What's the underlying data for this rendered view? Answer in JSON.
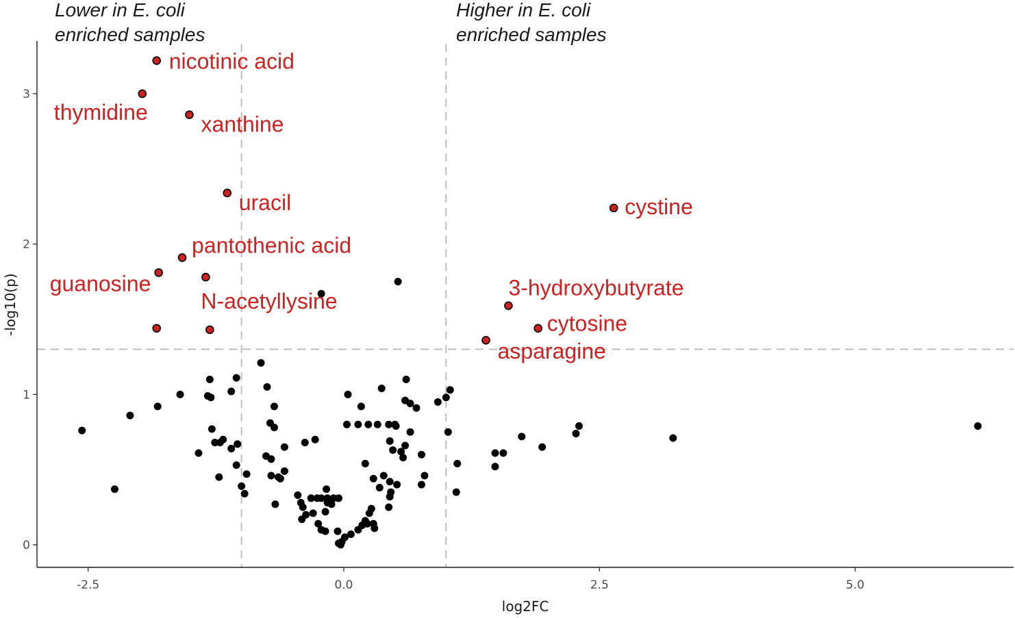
{
  "chart_data": {
    "type": "scatter",
    "title": "",
    "xlabel": "log2FC",
    "ylabel": "-log10(p)",
    "xlim": [
      -3.0,
      6.55
    ],
    "ylim": [
      -0.15,
      3.35
    ],
    "x_ticks": [
      -2.5,
      0.0,
      2.5,
      5.0
    ],
    "x_tick_labels": [
      "-2.5",
      "0.0",
      "2.5",
      "5.0"
    ],
    "y_ticks": [
      0,
      1,
      2,
      3
    ],
    "y_tick_labels": [
      "0",
      "1",
      "2",
      "3"
    ],
    "grid": false,
    "thresholds": {
      "fold_change": [
        -1.0,
        1.0
      ],
      "p": 1.3
    },
    "colors": {
      "significant": "#cc2222",
      "not_significant": "#000000",
      "threshold_line": "#bdbdbd"
    },
    "annotations": [
      {
        "lines": [
          "Lower in E. coli",
          "enriched samples"
        ],
        "position": "top-left"
      },
      {
        "lines": [
          "Higher in E. coli",
          "enriched samples"
        ],
        "position": "top-center"
      }
    ],
    "labeled_points": [
      {
        "label": "nicotinic acid",
        "x": -1.83,
        "y": 3.22
      },
      {
        "label": "thymidine",
        "x": -1.97,
        "y": 3.0
      },
      {
        "label": "xanthine",
        "x": -1.51,
        "y": 2.86
      },
      {
        "label": "uracil",
        "x": -1.14,
        "y": 2.34
      },
      {
        "label": "pantothenic acid",
        "x": -1.58,
        "y": 1.91
      },
      {
        "label": "guanosine",
        "x": -1.81,
        "y": 1.81
      },
      {
        "label": "N-acetyllysine",
        "x": -1.35,
        "y": 1.78
      },
      {
        "label": "cystine",
        "x": 2.64,
        "y": 2.24
      },
      {
        "label": "3-hydroxybutyrate",
        "x": 1.61,
        "y": 1.59
      },
      {
        "label": "cytosine",
        "x": 1.9,
        "y": 1.44
      },
      {
        "label": "asparagine",
        "x": 1.39,
        "y": 1.36
      }
    ],
    "significant_unlabeled": [
      {
        "x": -1.83,
        "y": 1.44
      },
      {
        "x": -1.31,
        "y": 1.43
      }
    ],
    "background_points": [
      [
        -0.22,
        1.67
      ],
      [
        0.53,
        1.75
      ],
      [
        -0.81,
        1.21
      ],
      [
        -1.05,
        1.11
      ],
      [
        -1.31,
        1.1
      ],
      [
        -0.75,
        1.05
      ],
      [
        -1.1,
        1.02
      ],
      [
        -1.6,
        1.0
      ],
      [
        -1.33,
        0.99
      ],
      [
        -1.3,
        0.98
      ],
      [
        -0.68,
        0.92
      ],
      [
        -1.82,
        0.92
      ],
      [
        -2.09,
        0.86
      ],
      [
        -0.72,
        0.81
      ],
      [
        -0.68,
        0.78
      ],
      [
        -1.29,
        0.77
      ],
      [
        -2.56,
        0.76
      ],
      [
        -1.18,
        0.7
      ],
      [
        -1.21,
        0.68
      ],
      [
        -1.26,
        0.68
      ],
      [
        -1.04,
        0.67
      ],
      [
        -1.1,
        0.64
      ],
      [
        -0.58,
        0.65
      ],
      [
        -0.38,
        0.68
      ],
      [
        -0.28,
        0.7
      ],
      [
        -1.42,
        0.61
      ],
      [
        -0.76,
        0.59
      ],
      [
        -0.71,
        0.57
      ],
      [
        -1.05,
        0.53
      ],
      [
        -0.95,
        0.47
      ],
      [
        -0.71,
        0.46
      ],
      [
        -0.58,
        0.49
      ],
      [
        -0.62,
        0.44
      ],
      [
        -1.22,
        0.45
      ],
      [
        -0.64,
        0.45
      ],
      [
        -1.0,
        0.39
      ],
      [
        -0.97,
        0.34
      ],
      [
        -0.67,
        0.27
      ],
      [
        -2.24,
        0.37
      ],
      [
        0.04,
        1.0
      ],
      [
        0.37,
        1.04
      ],
      [
        0.61,
        1.1
      ],
      [
        0.6,
        0.96
      ],
      [
        0.65,
        0.94
      ],
      [
        0.71,
        0.91
      ],
      [
        0.92,
        0.95
      ],
      [
        1.0,
        0.98
      ],
      [
        1.04,
        1.03
      ],
      [
        0.17,
        0.92
      ],
      [
        0.03,
        0.8
      ],
      [
        0.14,
        0.8
      ],
      [
        0.24,
        0.8
      ],
      [
        0.33,
        0.8
      ],
      [
        0.44,
        0.8
      ],
      [
        0.5,
        0.8
      ],
      [
        0.65,
        0.75
      ],
      [
        0.51,
        0.79
      ],
      [
        0.45,
        0.69
      ],
      [
        0.6,
        0.66
      ],
      [
        0.56,
        0.62
      ],
      [
        0.48,
        0.63
      ],
      [
        0.76,
        0.6
      ],
      [
        0.58,
        0.58
      ],
      [
        0.21,
        0.54
      ],
      [
        0.29,
        0.44
      ],
      [
        0.39,
        0.46
      ],
      [
        0.45,
        0.42
      ],
      [
        0.52,
        0.4
      ],
      [
        0.76,
        0.4
      ],
      [
        0.79,
        0.46
      ],
      [
        0.35,
        0.38
      ],
      [
        0.46,
        0.35
      ],
      [
        0.45,
        0.32
      ],
      [
        0.44,
        0.25
      ],
      [
        0.27,
        0.24
      ],
      [
        0.25,
        0.21
      ],
      [
        0.21,
        0.16
      ],
      [
        0.29,
        0.14
      ],
      [
        0.23,
        0.14
      ],
      [
        0.18,
        0.13
      ],
      [
        0.14,
        0.1
      ],
      [
        0.3,
        0.11
      ],
      [
        0.07,
        0.07
      ],
      [
        0.01,
        0.05
      ],
      [
        -0.02,
        0.02
      ],
      [
        -0.05,
        0.01
      ],
      [
        -0.03,
        0.0
      ],
      [
        -0.06,
        0.09
      ],
      [
        -0.18,
        0.09
      ],
      [
        -0.22,
        0.1
      ],
      [
        -0.25,
        0.14
      ],
      [
        -0.3,
        0.21
      ],
      [
        -0.37,
        0.2
      ],
      [
        -0.4,
        0.25
      ],
      [
        -0.41,
        0.17
      ],
      [
        -0.42,
        0.28
      ],
      [
        -0.45,
        0.33
      ],
      [
        -0.32,
        0.31
      ],
      [
        -0.26,
        0.31
      ],
      [
        -0.22,
        0.31
      ],
      [
        -0.16,
        0.31
      ],
      [
        -0.1,
        0.31
      ],
      [
        -0.05,
        0.31
      ],
      [
        -0.17,
        0.37
      ],
      [
        -0.16,
        0.28
      ],
      [
        -0.12,
        0.27
      ],
      [
        -0.18,
        0.22
      ],
      [
        1.02,
        0.75
      ],
      [
        1.11,
        0.54
      ],
      [
        1.1,
        0.35
      ],
      [
        1.48,
        0.61
      ],
      [
        1.56,
        0.61
      ],
      [
        1.48,
        0.52
      ],
      [
        1.74,
        0.72
      ],
      [
        1.94,
        0.65
      ],
      [
        2.27,
        0.74
      ],
      [
        2.3,
        0.79
      ],
      [
        3.22,
        0.71
      ],
      [
        6.2,
        0.79
      ]
    ]
  }
}
